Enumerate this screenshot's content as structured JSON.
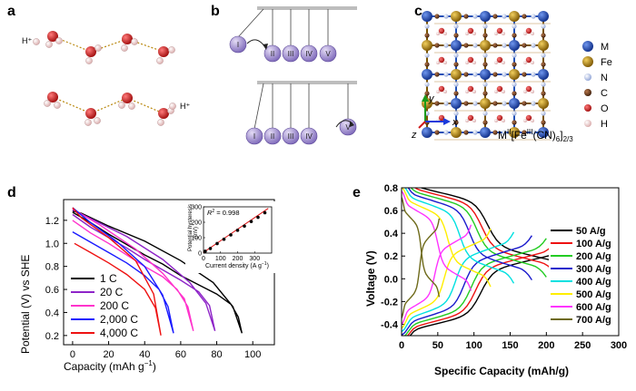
{
  "panels": {
    "a": {
      "label": "a",
      "h_plus_1": "H⁺",
      "h_plus_2": "H⁺"
    },
    "b": {
      "label": "b",
      "top_balls": [
        "I",
        "II",
        "III",
        "IV",
        "V"
      ],
      "bottom_balls": [
        "I",
        "II",
        "III",
        "IV",
        "V"
      ]
    },
    "c": {
      "label": "c",
      "legend": [
        {
          "symbol": "M",
          "color": "#1f4fb5"
        },
        {
          "symbol": "Fe",
          "color": "#b8860b"
        },
        {
          "symbol": "N",
          "color": "#b8c6e6"
        },
        {
          "symbol": "C",
          "color": "#6b3a1e"
        },
        {
          "symbol": "O",
          "color": "#d62020"
        },
        {
          "symbol": "H",
          "color": "#f2c9c9"
        }
      ],
      "axis_y": "y",
      "axis_x": "x",
      "axis_z": "z",
      "formula_main": "M",
      "formula_sup1": "II",
      "formula_mid": "[Fe",
      "formula_sup2": "III",
      "formula_end": "(CN)",
      "formula_sub1": "6",
      "formula_close": "]",
      "formula_sub2": "2/3"
    },
    "d": {
      "label": "d"
    },
    "e": {
      "label": "e"
    }
  },
  "chart_data": [
    {
      "id": "d",
      "type": "line",
      "xlabel_main": "Capacity (mAh g",
      "xlabel_sup": "−1",
      "xlabel_close": ")",
      "ylabel": "Potential (V) vs SHE",
      "xlim": [
        -5,
        112
      ],
      "ylim": [
        0.12,
        1.38
      ],
      "xticks": [
        0,
        20,
        40,
        60,
        80,
        100
      ],
      "yticks": [
        0.2,
        0.4,
        0.6,
        0.8,
        1.0,
        1.2
      ],
      "ytick_labels": [
        "0.2",
        "0.4",
        "0.6",
        "0.8",
        "1.0",
        "1.2"
      ],
      "series": [
        {
          "name": "1 C",
          "color": "#000000",
          "discharge": [
            [
              0,
              1.27
            ],
            [
              10,
              1.18
            ],
            [
              20,
              1.08
            ],
            [
              30,
              0.99
            ],
            [
              40,
              0.9
            ],
            [
              50,
              0.82
            ],
            [
              60,
              0.72
            ],
            [
              70,
              0.64
            ],
            [
              80,
              0.56
            ],
            [
              88,
              0.47
            ],
            [
              92,
              0.36
            ],
            [
              94,
              0.22
            ]
          ],
          "charge": [
            [
              94,
              0.22
            ],
            [
              89,
              0.45
            ],
            [
              78,
              0.66
            ],
            [
              60,
              0.85
            ],
            [
              40,
              1.02
            ],
            [
              20,
              1.15
            ],
            [
              5,
              1.26
            ],
            [
              0,
              1.28
            ]
          ]
        },
        {
          "name": "20 C",
          "color": "#8e24c8",
          "discharge": [
            [
              0,
              1.25
            ],
            [
              10,
              1.14
            ],
            [
              20,
              1.05
            ],
            [
              30,
              0.96
            ],
            [
              40,
              0.86
            ],
            [
              50,
              0.77
            ],
            [
              60,
              0.68
            ],
            [
              70,
              0.58
            ],
            [
              76,
              0.46
            ],
            [
              79,
              0.24
            ]
          ],
          "charge": [
            [
              79,
              0.24
            ],
            [
              74,
              0.48
            ],
            [
              65,
              0.66
            ],
            [
              50,
              0.86
            ],
            [
              30,
              1.06
            ],
            [
              12,
              1.2
            ],
            [
              0,
              1.29
            ]
          ]
        },
        {
          "name": "200 C",
          "color": "#ff33cc",
          "discharge": [
            [
              0,
              1.2
            ],
            [
              10,
              1.09
            ],
            [
              20,
              1.0
            ],
            [
              30,
              0.9
            ],
            [
              40,
              0.8
            ],
            [
              50,
              0.71
            ],
            [
              58,
              0.6
            ],
            [
              64,
              0.45
            ],
            [
              67,
              0.24
            ]
          ],
          "charge": [
            [
              67,
              0.24
            ],
            [
              62,
              0.52
            ],
            [
              50,
              0.74
            ],
            [
              35,
              0.95
            ],
            [
              15,
              1.16
            ],
            [
              0,
              1.3
            ]
          ]
        },
        {
          "name": "2,000 C",
          "color": "#1a1aff",
          "discharge": [
            [
              0,
              1.1
            ],
            [
              10,
              1.01
            ],
            [
              20,
              0.92
            ],
            [
              30,
              0.83
            ],
            [
              40,
              0.72
            ],
            [
              48,
              0.6
            ],
            [
              53,
              0.45
            ],
            [
              56,
              0.22
            ]
          ],
          "charge": [
            [
              56,
              0.22
            ],
            [
              50,
              0.55
            ],
            [
              40,
              0.8
            ],
            [
              25,
              1.01
            ],
            [
              10,
              1.18
            ],
            [
              0,
              1.31
            ]
          ]
        },
        {
          "name": "4,000 C",
          "color": "#ee1111",
          "discharge": [
            [
              1,
              1.0
            ],
            [
              10,
              0.92
            ],
            [
              20,
              0.83
            ],
            [
              30,
              0.73
            ],
            [
              40,
              0.6
            ],
            [
              46,
              0.44
            ],
            [
              49,
              0.2
            ]
          ],
          "charge": [
            [
              49,
              0.2
            ],
            [
              45,
              0.56
            ],
            [
              35,
              0.85
            ],
            [
              20,
              1.05
            ],
            [
              5,
              1.22
            ],
            [
              0,
              1.31
            ]
          ]
        }
      ],
      "inset": {
        "type": "scatter",
        "r2_label": "R",
        "r2_sup": "2",
        "r2_value": " = 0.998",
        "xlabel_main": "Current density (A g",
        "xlabel_sup": "−1",
        "xlabel_close": ")",
        "ylabel_1": "Potential hysteresis",
        "ylabel_2": "(mV)",
        "xlim": [
          0,
          400
        ],
        "ylim": [
          0,
          300
        ],
        "xticks": [
          0,
          100,
          200,
          300
        ],
        "yticks": [
          0,
          100,
          200,
          300
        ],
        "x": [
          10,
          40,
          80,
          120,
          160,
          200,
          240,
          280,
          320,
          360
        ],
        "y": [
          12,
          30,
          62,
          90,
          118,
          148,
          175,
          205,
          232,
          262
        ],
        "fit": [
          [
            0,
            5
          ],
          [
            380,
            290
          ]
        ]
      }
    },
    {
      "id": "e",
      "type": "line",
      "xlabel": "Specific Capacity (mAh/g)",
      "ylabel": "Voltage (V)",
      "xlim": [
        0,
        300
      ],
      "ylim": [
        -0.5,
        0.8
      ],
      "xticks": [
        0,
        50,
        100,
        150,
        200,
        250,
        300
      ],
      "yticks": [
        -0.4,
        -0.2,
        0.0,
        0.2,
        0.4,
        0.6,
        0.8
      ],
      "ytick_labels": [
        "-0.4",
        "-0.2",
        "0.0",
        "0.2",
        "0.4",
        "0.6",
        "0.8"
      ],
      "series": [
        {
          "name": "50 A/g",
          "color": "#000000",
          "capacity": 228,
          "hyst": 0.22
        },
        {
          "name": "100 A/g",
          "color": "#ee1111",
          "capacity": 213,
          "hyst": 0.26
        },
        {
          "name": "200 A/g",
          "color": "#22cc22",
          "capacity": 200,
          "hyst": 0.31
        },
        {
          "name": "300 A/g",
          "color": "#1a1acc",
          "capacity": 180,
          "hyst": 0.36
        },
        {
          "name": "400 A/g",
          "color": "#00e0e0",
          "capacity": 155,
          "hyst": 0.42
        },
        {
          "name": "500 A/g",
          "color": "#ffee00",
          "capacity": 123,
          "hyst": 0.48
        },
        {
          "name": "600 A/g",
          "color": "#ff33ff",
          "capacity": 96,
          "hyst": 0.55
        },
        {
          "name": "700 A/g",
          "color": "#6e6a1a",
          "capacity": 52,
          "hyst": 0.66
        }
      ]
    }
  ]
}
